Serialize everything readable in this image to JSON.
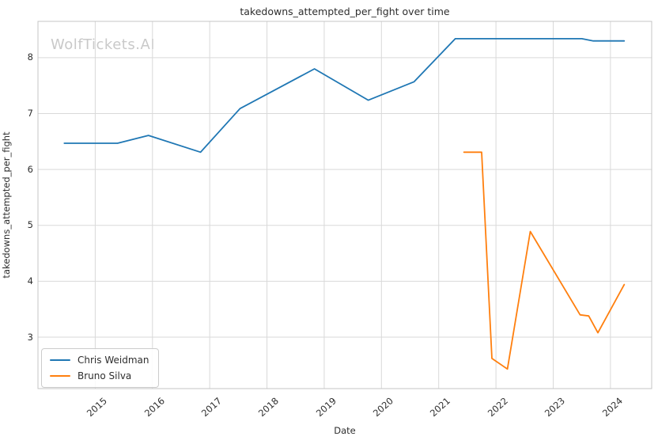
{
  "figure": {
    "watermark": "WolfTickets.AI"
  },
  "chart_data": {
    "type": "line",
    "title": "takedowns_attempted_per_fight over time",
    "xlabel": "Date",
    "ylabel": "takedowns_attempted_per_fight",
    "x_unit": "decimal_year",
    "x_ticks": [
      2015,
      2016,
      2017,
      2018,
      2019,
      2020,
      2021,
      2022,
      2023,
      2024
    ],
    "y_ticks": [
      3,
      4,
      5,
      6,
      7,
      8
    ],
    "x_range": [
      2014.0,
      2024.72
    ],
    "y_range": [
      2.08,
      8.65
    ],
    "grid": true,
    "legend_position": "lower left",
    "series": [
      {
        "name": "Chris Weidman",
        "color": "#1f77b4",
        "points": [
          [
            2014.46,
            6.47
          ],
          [
            2015.39,
            6.47
          ],
          [
            2015.93,
            6.61
          ],
          [
            2016.84,
            6.31
          ],
          [
            2017.53,
            7.09
          ],
          [
            2018.83,
            7.8
          ],
          [
            2019.77,
            7.24
          ],
          [
            2020.57,
            7.57
          ],
          [
            2021.29,
            8.34
          ],
          [
            2023.5,
            8.34
          ],
          [
            2023.7,
            8.3
          ],
          [
            2024.24,
            8.3
          ]
        ]
      },
      {
        "name": "Bruno Silva",
        "color": "#ff7f0e",
        "points": [
          [
            2021.44,
            6.31
          ],
          [
            2021.75,
            6.31
          ],
          [
            2021.93,
            2.62
          ],
          [
            2022.2,
            2.43
          ],
          [
            2022.6,
            4.89
          ],
          [
            2023.47,
            3.4
          ],
          [
            2023.62,
            3.38
          ],
          [
            2023.78,
            3.08
          ],
          [
            2024.24,
            3.94
          ]
        ]
      }
    ],
    "colors": {
      "grid": "#d9d9d9",
      "spine": "#c4c4c4",
      "text": "#2e2e2e",
      "watermark": "#c9c9c9",
      "background": "#ffffff"
    }
  }
}
